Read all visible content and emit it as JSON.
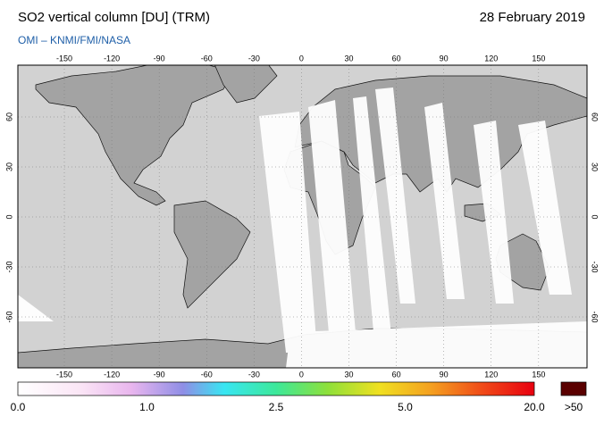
{
  "header": {
    "title": "SO2 vertical column [DU] (TRM)",
    "date": "28 February 2019",
    "source": "OMI  –  KNMI/FMI/NASA"
  },
  "map": {
    "lon_ticks": [
      "-150",
      "-120",
      "-90",
      "-60",
      "-30",
      "0",
      "30",
      "60",
      "90",
      "120",
      "150"
    ],
    "lat_ticks": [
      "60",
      "30",
      "0",
      "-30",
      "-60"
    ]
  },
  "colorbar": {
    "labels": [
      "0.0",
      "1.0",
      "2.5",
      "5.0",
      "20.0"
    ],
    "over_label": ">50"
  }
}
